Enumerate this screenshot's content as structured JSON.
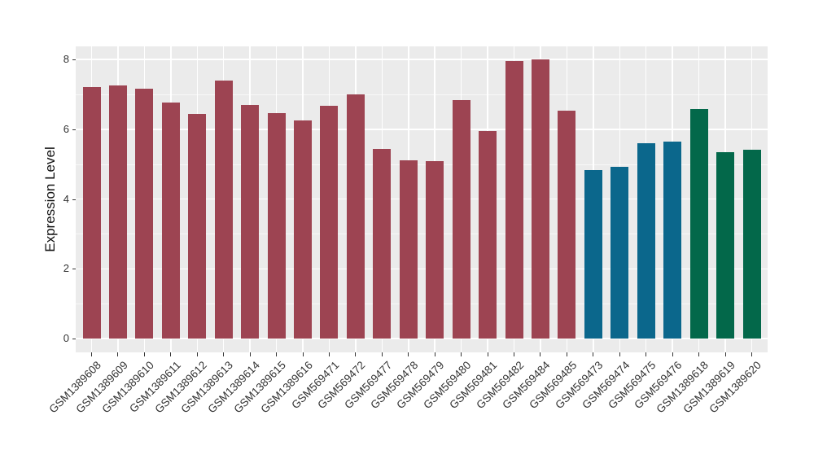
{
  "chart_data": {
    "type": "bar",
    "title": "",
    "xlabel": "",
    "ylabel": "Expression Level",
    "ylim": [
      0,
      8.4
    ],
    "yticks": [
      0,
      2,
      4,
      6,
      8
    ],
    "yticks_minor": [
      1,
      3,
      5,
      7
    ],
    "grid": "on",
    "legend": "none",
    "panel_background": "#ebebeb",
    "grid_color": "#ffffff",
    "tick_color": "#333333",
    "categories": [
      "GSM1389608",
      "GSM1389609",
      "GSM1389610",
      "GSM1389611",
      "GSM1389612",
      "GSM1389613",
      "GSM1389614",
      "GSM1389615",
      "GSM1389616",
      "GSM569471",
      "GSM569472",
      "GSM569477",
      "GSM569478",
      "GSM569479",
      "GSM569480",
      "GSM569481",
      "GSM569482",
      "GSM569484",
      "GSM569485",
      "GSM569473",
      "GSM569474",
      "GSM569475",
      "GSM569476",
      "GSM1389618",
      "GSM1389619",
      "GSM1389620"
    ],
    "values": [
      7.2,
      7.25,
      7.17,
      6.77,
      6.43,
      7.4,
      6.7,
      6.47,
      6.26,
      6.66,
      7.0,
      5.44,
      5.1,
      5.09,
      6.83,
      5.95,
      7.95,
      8.0,
      6.53,
      4.83,
      4.91,
      5.6,
      5.65,
      6.58,
      5.35,
      5.42
    ],
    "group_of_bar": [
      0,
      0,
      0,
      0,
      0,
      0,
      0,
      0,
      0,
      0,
      0,
      0,
      0,
      0,
      0,
      0,
      0,
      0,
      0,
      1,
      1,
      1,
      1,
      2,
      2,
      2
    ],
    "group_palette": [
      "#9d4452",
      "#0b678c",
      "#03684a"
    ]
  }
}
